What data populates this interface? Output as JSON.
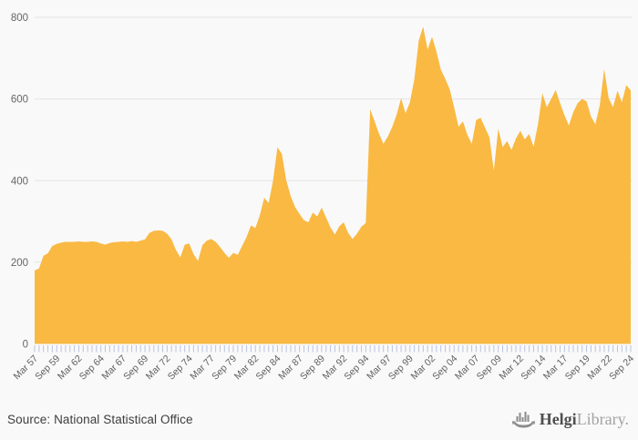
{
  "chart_data": {
    "type": "area",
    "title": "",
    "xlabel": "",
    "ylabel": "",
    "frequency": "semiannual",
    "period_start": "Mar 1957",
    "period_end": "Sep 2024",
    "ylim": [
      0,
      800
    ],
    "yticks": [
      0,
      200,
      400,
      600,
      800
    ],
    "grid": true,
    "legend": "none",
    "area_color": "#F9B943",
    "grid_color": "#e5e5e5",
    "tick_color": "#b9c3e0",
    "axis_label_color": "#606060",
    "x_tick_labels": [
      "Mar 57",
      "Sep 59",
      "Mar 62",
      "Sep 64",
      "Mar 67",
      "Sep 69",
      "Mar 72",
      "Sep 74",
      "Mar 77",
      "Sep 79",
      "Mar 82",
      "Sep 84",
      "Mar 87",
      "Sep 89",
      "Mar 92",
      "Sep 94",
      "Mar 97",
      "Sep 99",
      "Mar 02",
      "Sep 04",
      "Mar 07",
      "Sep 09",
      "Mar 12",
      "Sep 14",
      "Mar 17",
      "Sep 19",
      "Mar 22",
      "Sep 24"
    ],
    "x_tick_label_step": 5,
    "values": [
      180,
      185,
      216,
      222,
      240,
      245,
      248,
      250,
      250,
      250,
      251,
      250,
      250,
      251,
      250,
      246,
      243,
      247,
      249,
      250,
      251,
      250,
      252,
      250,
      253,
      256,
      272,
      277,
      278,
      277,
      270,
      256,
      230,
      212,
      243,
      246,
      220,
      203,
      242,
      253,
      257,
      250,
      237,
      223,
      211,
      223,
      218,
      240,
      262,
      290,
      284,
      315,
      358,
      345,
      400,
      482,
      465,
      400,
      362,
      335,
      318,
      303,
      298,
      322,
      312,
      334,
      310,
      285,
      268,
      288,
      298,
      272,
      257,
      270,
      287,
      296,
      575,
      545,
      515,
      490,
      508,
      532,
      562,
      602,
      565,
      592,
      648,
      743,
      777,
      721,
      752,
      716,
      672,
      649,
      624,
      580,
      532,
      545,
      512,
      490,
      548,
      554,
      530,
      506,
      425,
      527,
      482,
      497,
      475,
      503,
      522,
      501,
      514,
      483,
      538,
      614,
      580,
      600,
      622,
      590,
      560,
      535,
      568,
      590,
      600,
      594,
      557,
      538,
      585,
      673,
      602,
      580,
      620,
      592,
      634,
      621
    ]
  },
  "footer": {
    "source": "Source: National Statistical Office",
    "logo": {
      "brand_bold": "Helgi",
      "brand_light": "Library.",
      "icon": "viking-ship-bar-chart"
    }
  }
}
